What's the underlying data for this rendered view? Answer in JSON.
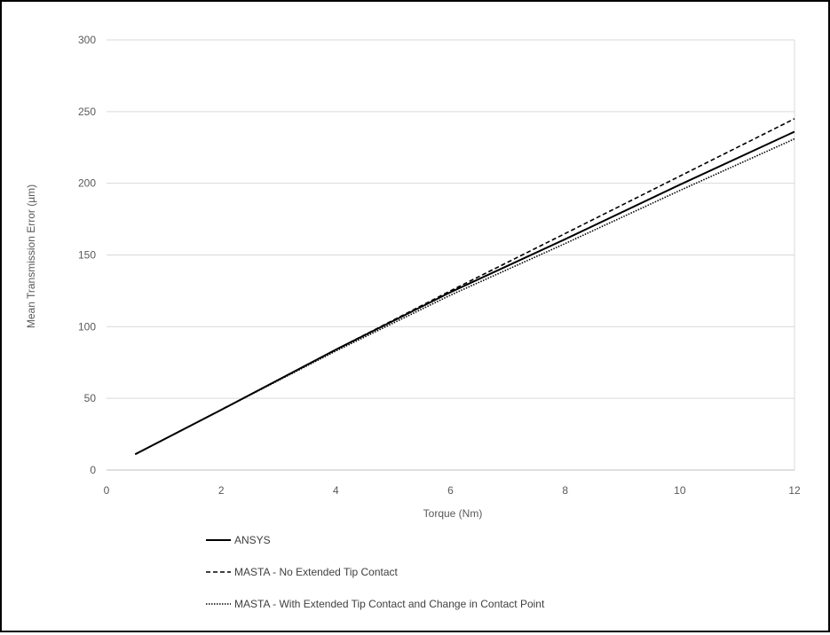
{
  "chart_data": {
    "type": "line",
    "title": "",
    "xlabel": "Torque (Nm)",
    "ylabel": "Mean Transmission Error (µm)",
    "xlim": [
      0,
      12
    ],
    "ylim": [
      0,
      300
    ],
    "xticks": [
      0,
      2,
      4,
      6,
      8,
      10,
      12
    ],
    "yticks": [
      0,
      50,
      100,
      150,
      200,
      250,
      300
    ],
    "grid": "horizontal",
    "legend_position": "bottom",
    "series": [
      {
        "name": "ANSYS",
        "style": "solid",
        "color": "#000000",
        "x": [
          0.5,
          2,
          4,
          6,
          8,
          10,
          12
        ],
        "y": [
          11,
          42,
          84,
          124,
          161,
          199,
          236
        ]
      },
      {
        "name": "MASTA - No Extended Tip Contact",
        "style": "dashed",
        "color": "#000000",
        "x": [
          0.5,
          2,
          4,
          6,
          8,
          10,
          12
        ],
        "y": [
          11,
          42,
          84,
          125,
          165,
          205,
          245
        ]
      },
      {
        "name": "MASTA - With Extended Tip Contact and Change in Contact Point",
        "style": "dotted",
        "color": "#000000",
        "x": [
          0.5,
          2,
          4,
          6,
          8,
          10,
          12
        ],
        "y": [
          11,
          42,
          83,
          122,
          158,
          195,
          231
        ]
      }
    ]
  }
}
